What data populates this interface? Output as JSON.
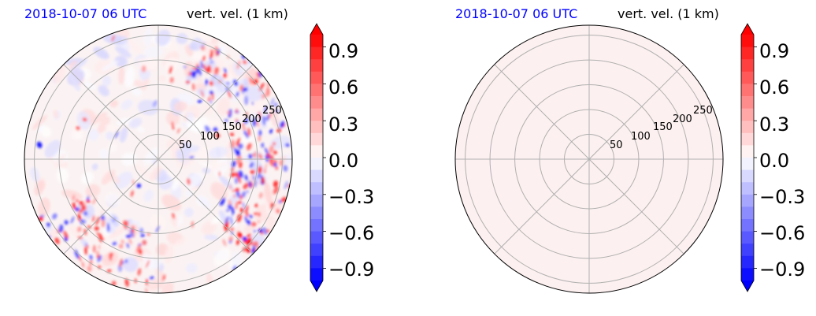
{
  "chart_data": [
    {
      "type": "heatmap",
      "projection": "polar",
      "title_left": "2018-10-07 06 UTC",
      "title_right": "vert. vel. (1 km)",
      "radial_ticks": [
        "50",
        "100",
        "150",
        "200",
        "250"
      ],
      "radial_range": [
        0,
        270
      ],
      "angular_gridlines_deg": [
        0,
        45,
        90,
        135,
        180,
        225,
        270,
        315
      ],
      "grid": true,
      "field": "mixed small-scale updrafts/downdrafts; strong positive and negative bands near outer rim on right side",
      "colorbar": {
        "range": [
          -1.0,
          1.0
        ],
        "extend": "both",
        "ticks": [
          "0.9",
          "0.6",
          "0.3",
          "0.0",
          "−0.3",
          "−0.6",
          "−0.9"
        ],
        "colors": {
          "neg": "#0000ff",
          "zero": "#ffffff",
          "pos": "#ff0000"
        }
      }
    },
    {
      "type": "heatmap",
      "projection": "polar",
      "title_left": "2018-10-07 06 UTC",
      "title_right": "vert. vel. (1 km)",
      "radial_ticks": [
        "50",
        "100",
        "150",
        "200",
        "250"
      ],
      "radial_range": [
        0,
        270
      ],
      "angular_gridlines_deg": [
        0,
        45,
        90,
        135,
        180,
        225,
        270,
        315
      ],
      "grid": true,
      "field": "uniform near-zero (very faint positive)",
      "fill_color": "#fdf0f0",
      "colorbar": {
        "range": [
          -1.0,
          1.0
        ],
        "extend": "both",
        "ticks": [
          "0.9",
          "0.6",
          "0.3",
          "0.0",
          "−0.3",
          "−0.6",
          "−0.9"
        ],
        "colors": {
          "neg": "#0000ff",
          "zero": "#ffffff",
          "pos": "#ff0000"
        }
      }
    }
  ]
}
